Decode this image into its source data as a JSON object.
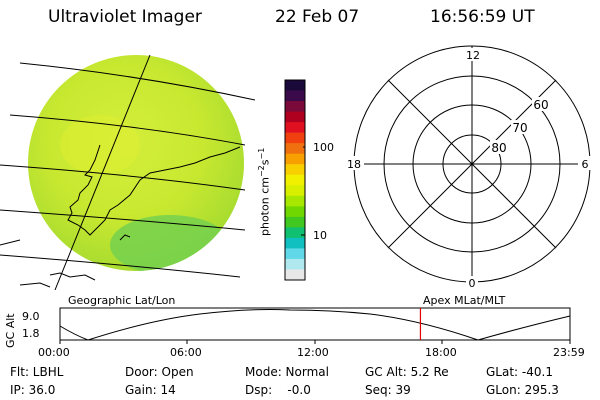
{
  "header": {
    "title": "Ultraviolet Imager",
    "date": "22 Feb 07",
    "time": "16:56:59 UT"
  },
  "colorbar": {
    "unit_label": "photon cm",
    "unit_sup1": "−2",
    "unit_mid": "s",
    "unit_sup2": "−1",
    "tick_100": "100",
    "tick_10": "10",
    "colors_top_to_bottom": [
      "#1a0a3a",
      "#3a0a4a",
      "#7a0a3a",
      "#b00020",
      "#e01020",
      "#f04010",
      "#f07010",
      "#f8a000",
      "#f8d000",
      "#f0f000",
      "#d8f000",
      "#a8e800",
      "#70d800",
      "#40c820",
      "#10c070",
      "#10c0c0",
      "#60d8e8",
      "#b0e8f0",
      "#e8e8e8"
    ]
  },
  "apex_plot": {
    "labels": [
      "12",
      "18",
      "6",
      "0",
      "60",
      "70",
      "80"
    ]
  },
  "timeline": {
    "left_label": "Geographic Lat/Lon",
    "right_label": "Apex MLat/MLT",
    "y_axis_label": "GC Alt",
    "y_ticks": [
      "9.0",
      "1.8"
    ],
    "x_ticks": [
      "00:00",
      "06:00",
      "12:00",
      "18:00",
      "23:59"
    ],
    "marker_color": "#e00000",
    "current_time_hours": 16.95
  },
  "info": {
    "flt": "Flt: LBHL",
    "ip": "IP: 36.0",
    "door": "Door: Open",
    "gain": "Gain: 14",
    "mode": "Mode: Normal",
    "dsp": "Dsp:    -0.0",
    "gcalt": "GC Alt: 5.2 Re",
    "seq": "Seq: 39",
    "glat": "GLat: -40.1",
    "glon": "GLon: 295.3"
  }
}
